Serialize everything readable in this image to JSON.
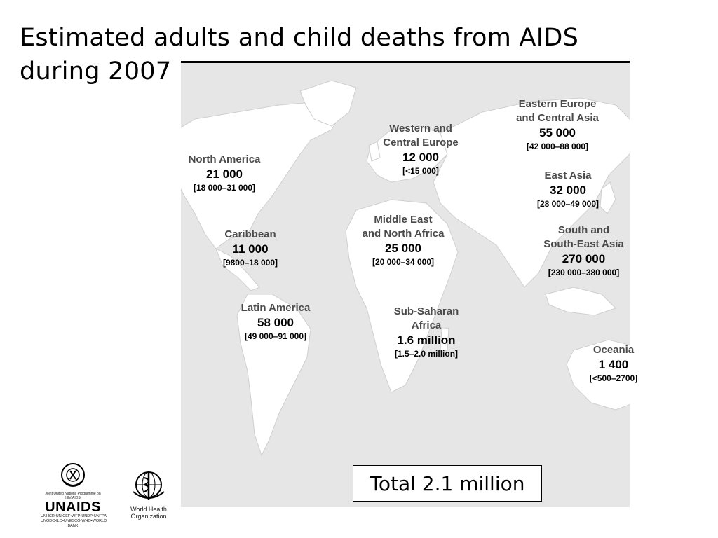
{
  "title": "Estimated adults and child deaths from AIDS during 2007",
  "regions": [
    {
      "name_lines": [
        "North America"
      ],
      "value": "21 000",
      "range": "[18 000–31 000]"
    },
    {
      "name_lines": [
        "Caribbean"
      ],
      "value": "11 000",
      "range": "[9800–18 000]"
    },
    {
      "name_lines": [
        "Latin America"
      ],
      "value": "58 000",
      "range": "[49 000–91 000]"
    },
    {
      "name_lines": [
        "Western and",
        "Central Europe"
      ],
      "value": "12 000",
      "range": "[<15 000]"
    },
    {
      "name_lines": [
        "Middle East",
        "and North Africa"
      ],
      "value": "25 000",
      "range": "[20 000–34 000]"
    },
    {
      "name_lines": [
        "Sub-Saharan",
        "Africa"
      ],
      "value": "1.6 million",
      "range": "[1.5–2.0 million]"
    },
    {
      "name_lines": [
        "Eastern Europe",
        "and Central Asia"
      ],
      "value": "55 000",
      "range": "[42 000–88 000]"
    },
    {
      "name_lines": [
        "East Asia"
      ],
      "value": "32 000",
      "range": "[28 000–49 000]"
    },
    {
      "name_lines": [
        "South and",
        "South-East Asia"
      ],
      "value": "270 000",
      "range": "[230 000–380 000]"
    },
    {
      "name_lines": [
        "Oceania"
      ],
      "value": "1 400",
      "range": "[<500–2700]"
    }
  ],
  "total": "Total 2.1 million",
  "logos": {
    "unaids_top": "Joint United Nations Programme on HIV/AIDS",
    "unaids_name": "UNAIDS",
    "unaids_line1": "UNHCR•UNICEF•WFP•UNDP•UNFPA",
    "unaids_line2": "UNODC•ILO•UNESCO•WHO•WORLD BANK",
    "who_line1": "World Health",
    "who_line2": "Organization"
  }
}
